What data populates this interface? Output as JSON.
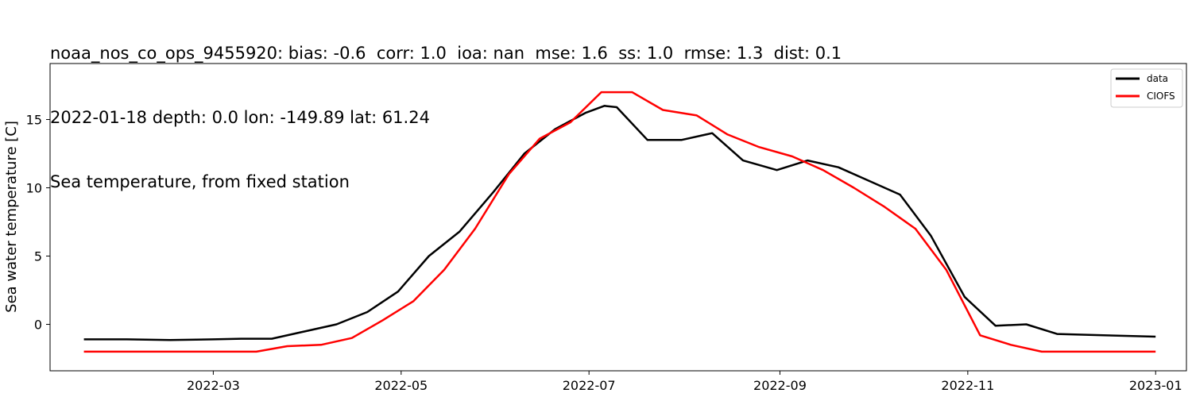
{
  "titles": {
    "line1": "noaa_nos_co_ops_9455920: bias: -0.6  corr: 1.0  ioa: nan  mse: 1.6  ss: 1.0  rmse: 1.3  dist: 0.1",
    "line2": "2022-01-18 depth: 0.0 lon: -149.89 lat: 61.24",
    "line3": "Sea temperature, from fixed station"
  },
  "chart_data": {
    "type": "line",
    "title": "Sea temperature, from fixed station",
    "xlabel": "",
    "ylabel": "Sea water temperature [C]",
    "xlim": [
      "2022-01-07",
      "2023-01-11"
    ],
    "ylim": [
      -3.4,
      19.1
    ],
    "x_ticks": [
      "2022-03",
      "2022-05",
      "2022-07",
      "2022-09",
      "2022-11",
      "2023-01"
    ],
    "y_ticks": [
      0,
      5,
      10,
      15
    ],
    "grid": false,
    "legend_position": "top-right",
    "series": [
      {
        "name": "data",
        "color": "#000000",
        "points": [
          [
            "2022-01-18",
            -1.1
          ],
          [
            "2022-02-01",
            -1.1
          ],
          [
            "2022-02-15",
            -1.15
          ],
          [
            "2022-03-01",
            -1.1
          ],
          [
            "2022-03-10",
            -1.05
          ],
          [
            "2022-03-20",
            -1.05
          ],
          [
            "2022-03-31",
            -0.5
          ],
          [
            "2022-04-10",
            0.0
          ],
          [
            "2022-04-20",
            0.9
          ],
          [
            "2022-04-30",
            2.4
          ],
          [
            "2022-05-10",
            5.0
          ],
          [
            "2022-05-20",
            6.8
          ],
          [
            "2022-05-31",
            9.7
          ],
          [
            "2022-06-10",
            12.5
          ],
          [
            "2022-06-20",
            14.3
          ],
          [
            "2022-06-30",
            15.5
          ],
          [
            "2022-07-06",
            16.0
          ],
          [
            "2022-07-10",
            15.9
          ],
          [
            "2022-07-20",
            13.5
          ],
          [
            "2022-07-31",
            13.5
          ],
          [
            "2022-08-10",
            14.0
          ],
          [
            "2022-08-20",
            12.0
          ],
          [
            "2022-08-31",
            11.3
          ],
          [
            "2022-09-10",
            12.0
          ],
          [
            "2022-09-20",
            11.5
          ],
          [
            "2022-09-30",
            10.5
          ],
          [
            "2022-10-10",
            9.5
          ],
          [
            "2022-10-20",
            6.5
          ],
          [
            "2022-10-31",
            2.0
          ],
          [
            "2022-11-10",
            -0.1
          ],
          [
            "2022-11-20",
            0.0
          ],
          [
            "2022-11-30",
            -0.7
          ],
          [
            "2022-12-15",
            -0.8
          ],
          [
            "2023-01-01",
            -0.9
          ]
        ]
      },
      {
        "name": "CIOFS",
        "color": "#ff0000",
        "points": [
          [
            "2022-01-18",
            -2.0
          ],
          [
            "2022-02-01",
            -2.0
          ],
          [
            "2022-02-15",
            -2.0
          ],
          [
            "2022-03-01",
            -2.0
          ],
          [
            "2022-03-15",
            -2.0
          ],
          [
            "2022-03-25",
            -1.6
          ],
          [
            "2022-04-05",
            -1.5
          ],
          [
            "2022-04-15",
            -1.0
          ],
          [
            "2022-04-25",
            0.3
          ],
          [
            "2022-05-05",
            1.7
          ],
          [
            "2022-05-15",
            4.0
          ],
          [
            "2022-05-25",
            7.0
          ],
          [
            "2022-06-05",
            11.0
          ],
          [
            "2022-06-15",
            13.6
          ],
          [
            "2022-06-25",
            14.8
          ],
          [
            "2022-07-05",
            17.0
          ],
          [
            "2022-07-15",
            17.0
          ],
          [
            "2022-07-25",
            15.7
          ],
          [
            "2022-08-05",
            15.3
          ],
          [
            "2022-08-15",
            13.9
          ],
          [
            "2022-08-25",
            13.0
          ],
          [
            "2022-09-05",
            12.3
          ],
          [
            "2022-09-15",
            11.3
          ],
          [
            "2022-09-25",
            10.0
          ],
          [
            "2022-10-05",
            8.6
          ],
          [
            "2022-10-15",
            7.0
          ],
          [
            "2022-10-25",
            4.0
          ],
          [
            "2022-11-05",
            -0.8
          ],
          [
            "2022-11-15",
            -1.5
          ],
          [
            "2022-11-25",
            -2.0
          ],
          [
            "2022-12-15",
            -2.0
          ],
          [
            "2023-01-01",
            -2.0
          ]
        ]
      }
    ]
  }
}
